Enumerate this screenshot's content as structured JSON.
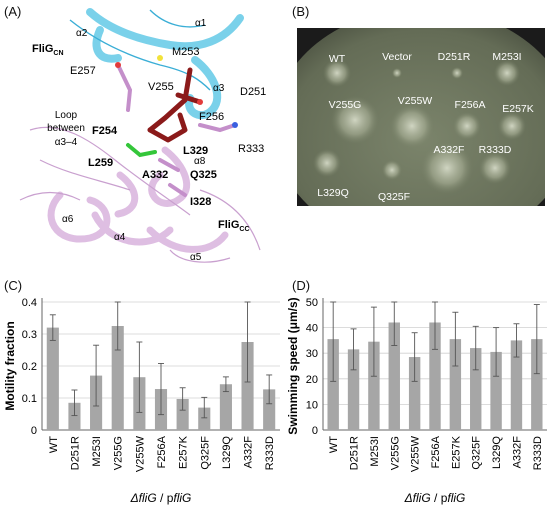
{
  "panel_labels": {
    "a": "(A)",
    "b": "(B)",
    "c": "(C)",
    "d": "(D)"
  },
  "structure": {
    "domain_top": "FliG",
    "domain_top_sub": "CN",
    "domain_bottom": "FliG",
    "domain_bottom_sub": "CC",
    "helices": [
      "α2",
      "α1",
      "α3",
      "α3–4",
      "α8",
      "α6",
      "α4",
      "α5"
    ],
    "residues": [
      "M253",
      "E257",
      "V255",
      "D251",
      "F256",
      "F254",
      "R333",
      "L259",
      "L329",
      "A332",
      "Q325",
      "I328"
    ],
    "loop_line1": "Loop",
    "loop_line2": "between",
    "loop_line3": "α3–4"
  },
  "plate": {
    "labels": [
      "WT",
      "Vector",
      "D251R",
      "M253I",
      "V255G",
      "V255W",
      "F256A",
      "E257K",
      "A332F",
      "R333D",
      "L329Q",
      "Q325F"
    ],
    "colors": {
      "agar": "#6f7760",
      "background": "#1b1b1b",
      "label": "#ffffff"
    }
  },
  "chart_data": [
    {
      "type": "bar",
      "categories": [
        "WT",
        "D251R",
        "M253I",
        "V255G",
        "V255W",
        "F256A",
        "E257K",
        "Q325F",
        "L329Q",
        "A332F",
        "R333D"
      ],
      "values": [
        0.32,
        0.085,
        0.17,
        0.325,
        0.165,
        0.128,
        0.097,
        0.07,
        0.143,
        0.275,
        0.127
      ],
      "errors": [
        0.04,
        0.04,
        0.095,
        0.075,
        0.11,
        0.08,
        0.035,
        0.032,
        0.023,
        0.125,
        0.045
      ],
      "ylabel": "Motility fraction",
      "xlabel_italic_1": "ΔfliG",
      "xlabel_sep": " / p",
      "xlabel_italic_2": "fliG",
      "ylim": [
        0,
        0.4
      ],
      "yticks": [
        "0",
        "0.1",
        "0.2",
        "0.3",
        "0.4"
      ],
      "grid": "y",
      "bar_color": "#a6a6a6"
    },
    {
      "type": "bar",
      "categories": [
        "WT",
        "D251R",
        "M253I",
        "V255G",
        "V255W",
        "F256A",
        "E257K",
        "Q325F",
        "L329Q",
        "A332F",
        "R333D"
      ],
      "values": [
        35.5,
        31.5,
        34.5,
        42,
        28.5,
        42,
        35.5,
        32,
        30.5,
        35,
        35.5
      ],
      "errors": [
        16.5,
        8,
        13.5,
        9,
        9.5,
        10.5,
        10.5,
        8.5,
        9.5,
        6.5,
        13.5
      ],
      "ylabel": "Swimming speed (μm/s)",
      "xlabel_italic_1": "ΔfliG",
      "xlabel_sep": " / p",
      "xlabel_italic_2": "fliG",
      "ylim": [
        0,
        50
      ],
      "yticks": [
        "0",
        "10",
        "20",
        "30",
        "40",
        "50"
      ],
      "grid": "y",
      "bar_color": "#a6a6a6"
    }
  ]
}
